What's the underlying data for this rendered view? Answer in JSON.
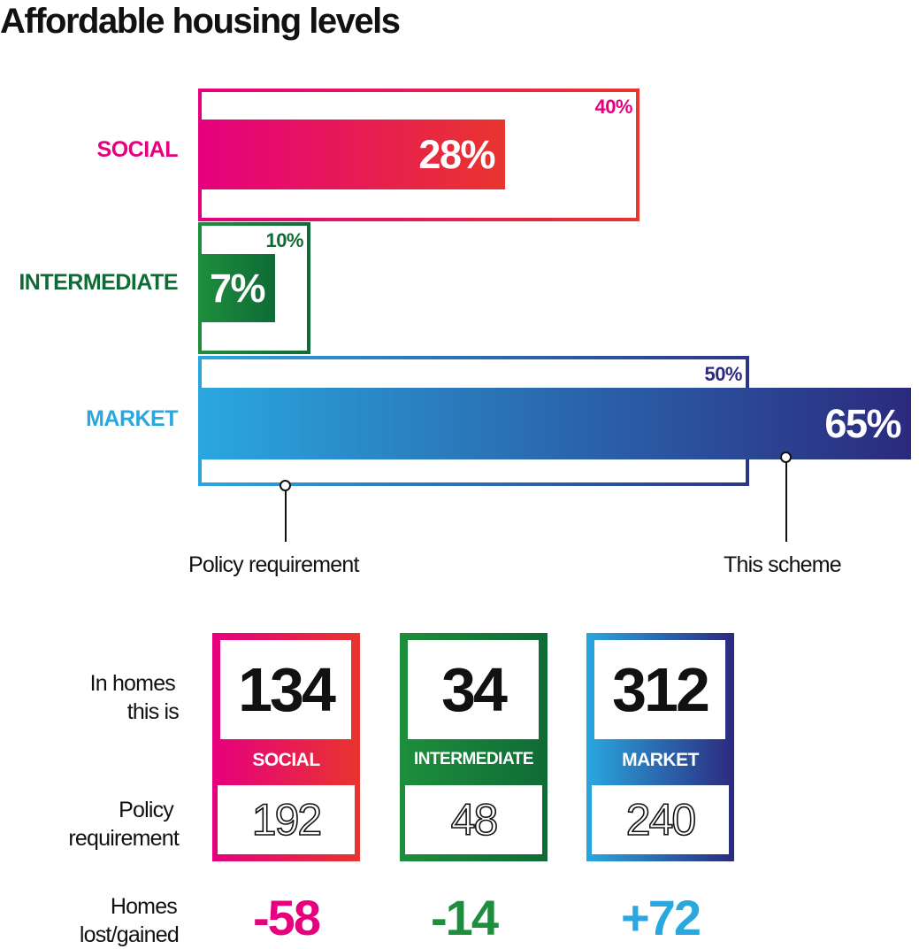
{
  "title": "Affordable housing levels",
  "chart_data": {
    "type": "bar",
    "categories": [
      "SOCIAL",
      "INTERMEDIATE",
      "MARKET"
    ],
    "series": [
      {
        "name": "Policy requirement",
        "values": [
          40,
          10,
          50
        ]
      },
      {
        "name": "This scheme",
        "values": [
          28,
          7,
          65
        ]
      }
    ],
    "value_labels": {
      "policy": [
        "40%",
        "10%",
        "50%"
      ],
      "scheme": [
        "28%",
        "7%",
        "65%"
      ]
    },
    "unit": "%"
  },
  "colors": {
    "social": "#e6007e",
    "social_end": "#e8352e",
    "intermediate": "#1d8f3c",
    "intermediate_end": "#0f6b36",
    "market": "#2aa7df",
    "market_end": "#2b2a7e",
    "market_policy_end": "#2d3586"
  },
  "callouts": {
    "policy": "Policy requirement",
    "scheme": "This scheme"
  },
  "homes_table": {
    "row_labels": {
      "in_homes_1": "In homes",
      "in_homes_2": "this is",
      "policy_1": "Policy",
      "policy_2": "requirement",
      "delta_1": "Homes",
      "delta_2": "lost/gained"
    },
    "cards": [
      {
        "name": "SOCIAL",
        "homes": "134",
        "policy": "192",
        "delta": "-58"
      },
      {
        "name": "INTERMEDIATE",
        "homes": "34",
        "policy": "48",
        "delta": "-14"
      },
      {
        "name": "MARKET",
        "homes": "312",
        "policy": "240",
        "delta": "+72"
      }
    ]
  }
}
